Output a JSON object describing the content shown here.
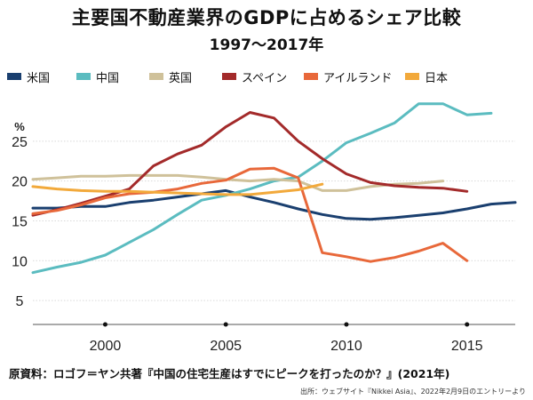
{
  "title": "主要国不動産業界のGDPに占めるシェア比較",
  "subtitle": "1997〜2017年",
  "source": "原資料：ロゴフ＝ヤン共著『中国の住宅生産はすでにピークを打ったのか？』(2021年)",
  "credit": "出所：ウェブサイト『Nikkei Asia』、2022年2月9日のエントリーより",
  "chart_data": {
    "type": "line",
    "title": "主要国不動産業界のGDPに占めるシェア比較",
    "subtitle": "1997〜2017年",
    "ylabel": "%",
    "xlabel": "",
    "xlim": [
      1997,
      2017
    ],
    "ylim": [
      2,
      30
    ],
    "yticks": [
      5,
      10,
      15,
      20,
      25
    ],
    "xticks": [
      2000,
      2005,
      2010,
      2015
    ],
    "grid": "horizontal",
    "legend_position": "top",
    "series": [
      {
        "name": "米国",
        "color": "#1a3f6f",
        "x": [
          1997,
          1998,
          1999,
          2000,
          2001,
          2002,
          2003,
          2004,
          2005,
          2006,
          2007,
          2008,
          2009,
          2010,
          2011,
          2012,
          2013,
          2014,
          2015,
          2016,
          2017
        ],
        "values": [
          16.6,
          16.6,
          16.8,
          16.8,
          17.3,
          17.6,
          18.0,
          18.4,
          18.8,
          18.0,
          17.3,
          16.5,
          15.8,
          15.3,
          15.2,
          15.4,
          15.7,
          16.0,
          16.5,
          17.1,
          17.3
        ]
      },
      {
        "name": "中国",
        "color": "#5bbcc0",
        "x": [
          1997,
          1998,
          1999,
          2000,
          2001,
          2002,
          2003,
          2004,
          2005,
          2006,
          2007,
          2008,
          2009,
          2010,
          2011,
          2012,
          2013,
          2014,
          2015,
          2016
        ],
        "values": [
          8.5,
          9.2,
          9.8,
          10.7,
          12.3,
          13.9,
          15.8,
          17.6,
          18.2,
          19.0,
          20.0,
          20.5,
          22.5,
          24.8,
          26.0,
          27.3,
          29.7,
          29.7,
          28.3,
          28.5
        ]
      },
      {
        "name": "英国",
        "color": "#cfc19a",
        "x": [
          1997,
          1998,
          1999,
          2000,
          2001,
          2002,
          2003,
          2004,
          2005,
          2006,
          2007,
          2008,
          2009,
          2010,
          2011,
          2012,
          2013,
          2014
        ],
        "values": [
          20.2,
          20.4,
          20.6,
          20.6,
          20.7,
          20.7,
          20.7,
          20.5,
          20.2,
          20.0,
          20.2,
          20.0,
          18.8,
          18.8,
          19.3,
          19.6,
          19.7,
          20.0
        ]
      },
      {
        "name": "スペイン",
        "color": "#a32a2a",
        "x": [
          1997,
          1998,
          1999,
          2000,
          2001,
          2002,
          2003,
          2004,
          2005,
          2006,
          2007,
          2008,
          2009,
          2010,
          2011,
          2012,
          2013,
          2014,
          2015
        ],
        "values": [
          15.7,
          16.4,
          17.2,
          18.1,
          19.0,
          21.9,
          23.4,
          24.5,
          26.8,
          28.6,
          27.9,
          25.0,
          22.8,
          20.9,
          19.8,
          19.4,
          19.2,
          19.1,
          18.7
        ]
      },
      {
        "name": "アイルランド",
        "color": "#e8683a",
        "x": [
          1997,
          1998,
          1999,
          2000,
          2001,
          2002,
          2003,
          2004,
          2005,
          2006,
          2007,
          2008,
          2009,
          2010,
          2011,
          2012,
          2013,
          2014,
          2015
        ],
        "values": [
          15.9,
          16.3,
          17.0,
          17.9,
          18.4,
          18.6,
          19.0,
          19.7,
          20.1,
          21.5,
          21.6,
          20.4,
          11.0,
          10.5,
          9.9,
          10.4,
          11.2,
          12.2,
          10.0
        ]
      },
      {
        "name": "日本",
        "color": "#f2a93b",
        "x": [
          1997,
          1998,
          1999,
          2000,
          2001,
          2002,
          2003,
          2004,
          2005,
          2006,
          2007,
          2008,
          2009
        ],
        "values": [
          19.3,
          19.0,
          18.8,
          18.7,
          18.7,
          18.6,
          18.5,
          18.4,
          18.3,
          18.3,
          18.6,
          18.9,
          19.6
        ]
      }
    ]
  }
}
